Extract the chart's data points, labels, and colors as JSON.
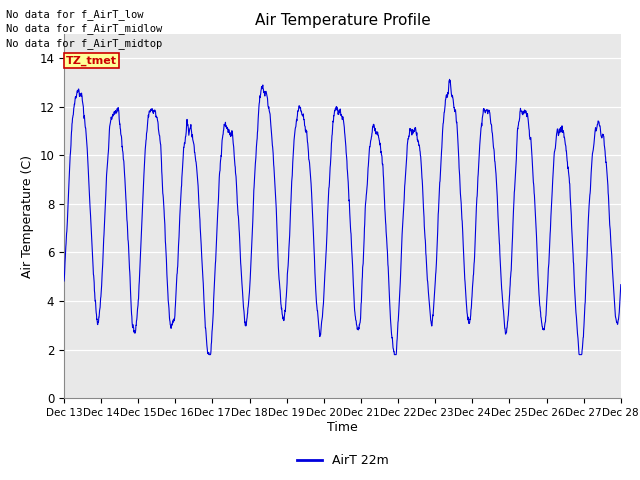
{
  "title": "Air Temperature Profile",
  "xlabel": "Time",
  "ylabel": "Air Temperature (C)",
  "xlim_days": [
    13,
    28
  ],
  "ylim": [
    0,
    15
  ],
  "yticks": [
    0,
    2,
    4,
    6,
    8,
    10,
    12,
    14
  ],
  "xtick_labels": [
    "Dec 13",
    "Dec 14",
    "Dec 15",
    "Dec 16",
    "Dec 17",
    "Dec 18",
    "Dec 19",
    "Dec 20",
    "Dec 21",
    "Dec 22",
    "Dec 23",
    "Dec 24",
    "Dec 25",
    "Dec 26",
    "Dec 27",
    "Dec 28"
  ],
  "line_color": "#0000dd",
  "figure_bg": "#ffffff",
  "plot_bg": "#e8e8e8",
  "grid_color": "#ffffff",
  "no_data_texts": [
    "No data for f_AirT_low",
    "No data for f_AirT_midlow",
    "No data for f_AirT_midtop"
  ],
  "legend_label": "AirT 22m",
  "legend_box_facecolor": "#ffff99",
  "legend_box_edgecolor": "#cc0000",
  "legend_box_text": "TZ_tmet",
  "legend_box_textcolor": "#cc0000"
}
